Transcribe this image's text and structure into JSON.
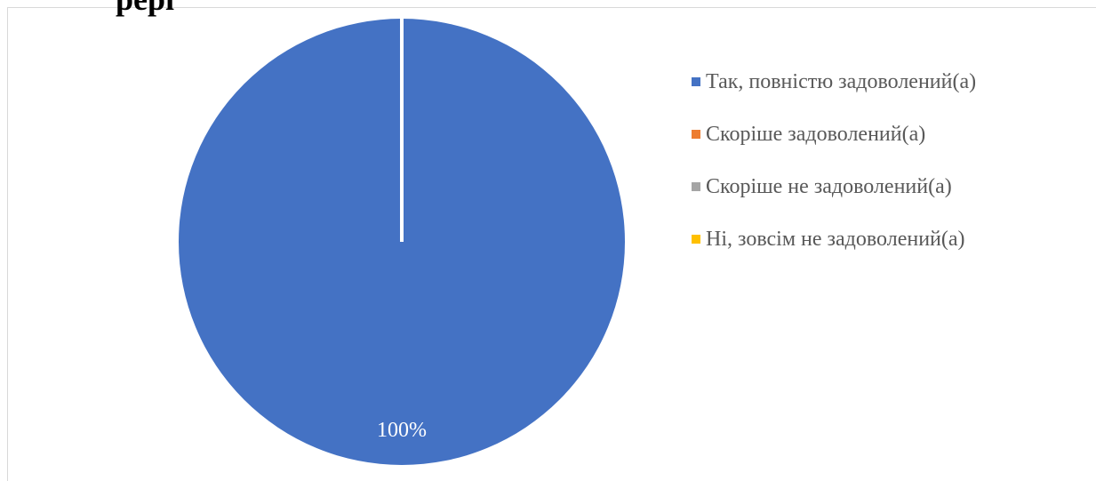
{
  "header": {
    "partial_title": "рері"
  },
  "chart_data": {
    "type": "pie",
    "categories": [
      "Так, повністю задоволений(а)",
      "Скоріше задоволений(а)",
      "Скоріше не задоволений(а)",
      "Ні, зовсім не задоволений(а)"
    ],
    "values": [
      100,
      0,
      0,
      0
    ],
    "data_labels": [
      "100%",
      "",
      "",
      ""
    ],
    "colors": [
      "#4472C4",
      "#ED7D31",
      "#A5A5A5",
      "#FFC000"
    ],
    "legend_position": "right"
  }
}
